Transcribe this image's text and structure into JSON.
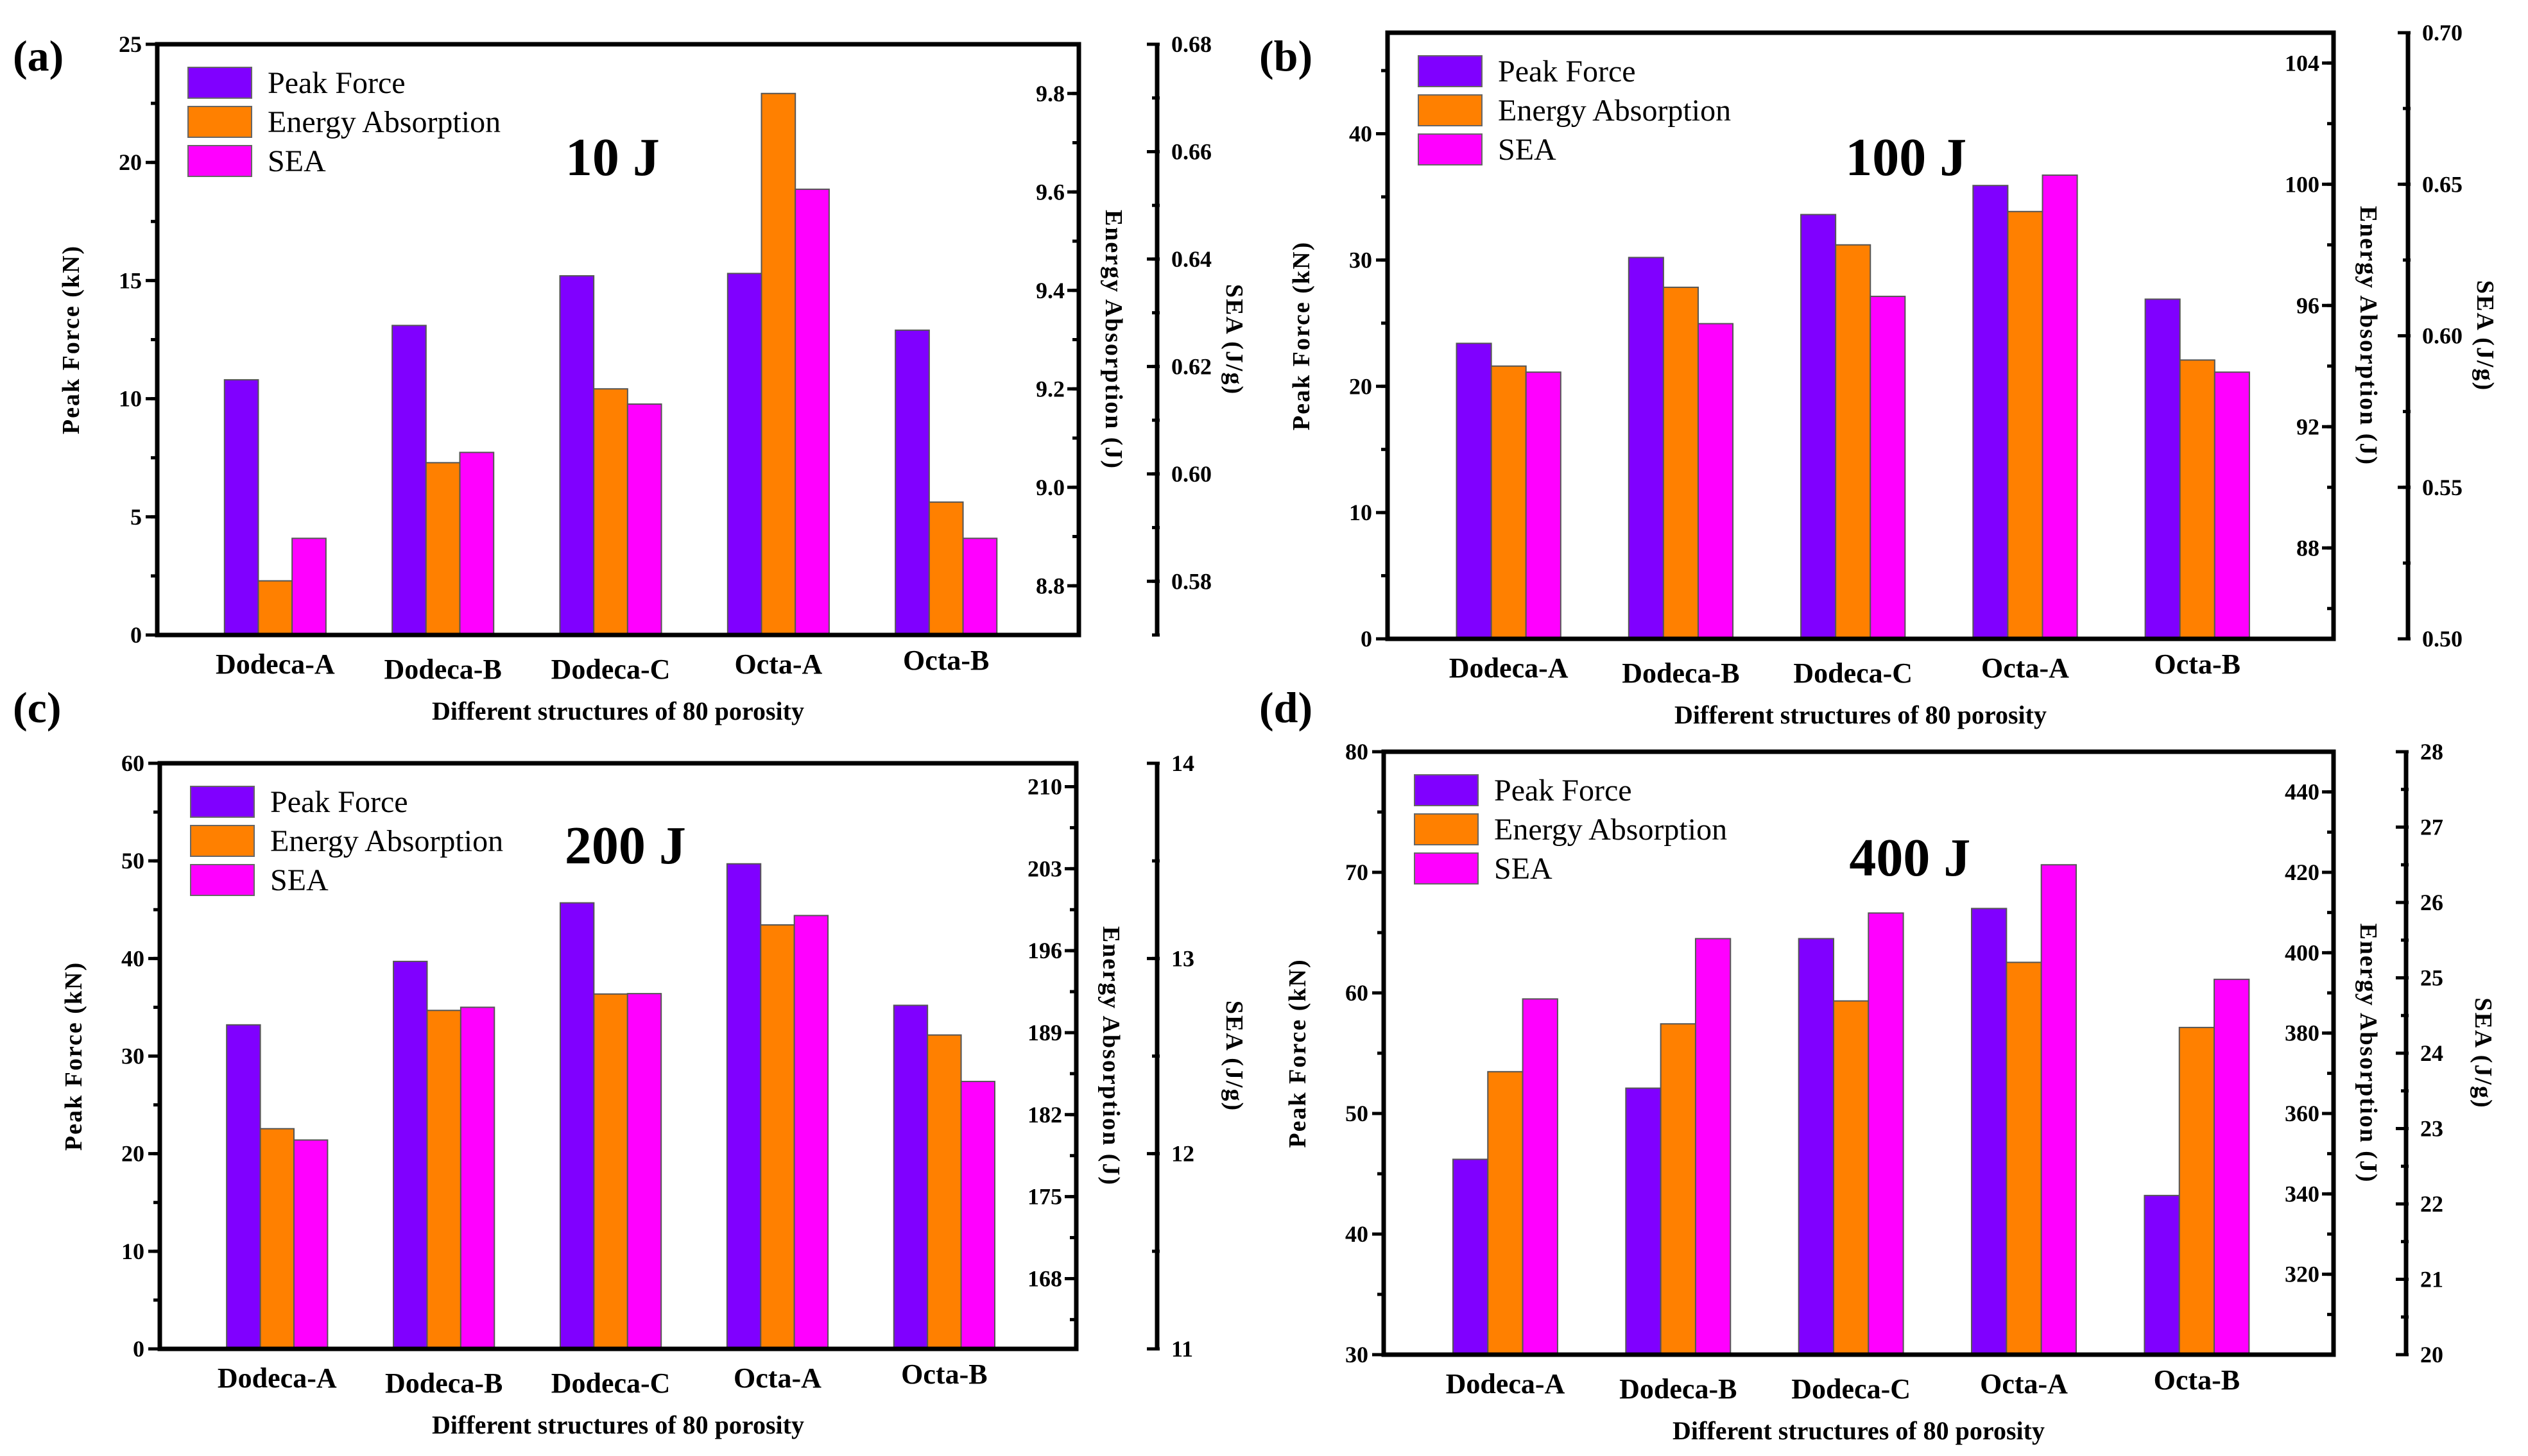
{
  "colors": {
    "peak_force": "#8000ff",
    "energy_absorption": "#ff8000",
    "sea": "#ff00ff"
  },
  "chart_data": [
    {
      "type": "bar",
      "panel_label": "(a)",
      "title": "10 J",
      "categories": [
        "Dodeca-A",
        "Dodeca-B",
        "Dodeca-C",
        "Octa-A",
        "Octa-B"
      ],
      "xlabel": "Different structures of 80 porosity",
      "legend": [
        "Peak Force",
        "Energy Absorption",
        "SEA"
      ],
      "legend_position": "top-left",
      "axes": {
        "left": {
          "label": "Peak Force (kN)",
          "min": 0,
          "max": 25,
          "ticks": [
            "0",
            "5",
            "10",
            "15",
            "20",
            "25"
          ]
        },
        "right1": {
          "label": "Energy Absorption (J)",
          "min": 8.7,
          "max": 9.9,
          "ticks": [
            "8.8",
            "9.0",
            "9.2",
            "9.4",
            "9.6",
            "9.8"
          ]
        },
        "right2": {
          "label": "SEA (J/g)",
          "min": 0.57,
          "max": 0.68,
          "ticks": [
            "0.58",
            "0.60",
            "0.62",
            "0.64",
            "0.66",
            "0.68"
          ]
        }
      },
      "series": [
        {
          "name": "Peak Force",
          "axis": "left",
          "values": [
            10.8,
            13.1,
            15.2,
            15.3,
            12.9
          ]
        },
        {
          "name": "Energy Absorption",
          "axis": "right1",
          "values": [
            8.81,
            9.05,
            9.2,
            9.8,
            8.97
          ]
        },
        {
          "name": "SEA",
          "axis": "right2",
          "values": [
            0.588,
            0.604,
            0.613,
            0.653,
            0.588
          ]
        }
      ]
    },
    {
      "type": "bar",
      "panel_label": "(b)",
      "title": "100 J",
      "categories": [
        "Dodeca-A",
        "Dodeca-B",
        "Dodeca-C",
        "Octa-A",
        "Octa-B"
      ],
      "xlabel": "Different structures of 80 porosity",
      "legend": [
        "Peak Force",
        "Energy Absorption",
        "SEA"
      ],
      "legend_position": "top-left",
      "axes": {
        "left": {
          "label": "Peak Force (kN)",
          "min": 0,
          "max": 48,
          "ticks": [
            "0",
            "10",
            "20",
            "30",
            "40"
          ]
        },
        "right1": {
          "label": "Energy Absorption (J)",
          "min": 85,
          "max": 105,
          "ticks": [
            "88",
            "92",
            "96",
            "100",
            "104"
          ]
        },
        "right2": {
          "label": "SEA (J/g)",
          "min": 0.5,
          "max": 0.7,
          "ticks": [
            "0.50",
            "0.55",
            "0.60",
            "0.65",
            "0.70"
          ]
        }
      },
      "series": [
        {
          "name": "Peak Force",
          "axis": "left",
          "values": [
            23.4,
            30.2,
            33.6,
            35.9,
            26.9
          ]
        },
        {
          "name": "Energy Absorption",
          "axis": "right1",
          "values": [
            94.0,
            96.6,
            98.0,
            99.1,
            94.2
          ]
        },
        {
          "name": "SEA",
          "axis": "right2",
          "values": [
            0.588,
            0.604,
            0.613,
            0.653,
            0.588
          ]
        }
      ]
    },
    {
      "type": "bar",
      "panel_label": "(c)",
      "title": "200 J",
      "categories": [
        "Dodeca-A",
        "Dodeca-B",
        "Dodeca-C",
        "Octa-A",
        "Octa-B"
      ],
      "xlabel": "Different structures of 80 porosity",
      "legend": [
        "Peak Force",
        "Energy Absorption",
        "SEA"
      ],
      "legend_position": "top-left",
      "axes": {
        "left": {
          "label": "Peak Force (kN)",
          "min": 0,
          "max": 60,
          "ticks": [
            "0",
            "10",
            "20",
            "30",
            "40",
            "50",
            "60"
          ]
        },
        "right1": {
          "label": "Energy Absorption (J)",
          "min": 162,
          "max": 212,
          "ticks": [
            "168",
            "175",
            "182",
            "189",
            "196",
            "203",
            "210"
          ]
        },
        "right2": {
          "label": "SEA (J/g)",
          "min": 11,
          "max": 14,
          "ticks": [
            "11",
            "12",
            "13",
            "14"
          ]
        }
      },
      "series": [
        {
          "name": "Peak Force",
          "axis": "left",
          "values": [
            33.2,
            39.7,
            45.7,
            49.7,
            35.2
          ]
        },
        {
          "name": "Energy Absorption",
          "axis": "right1",
          "values": [
            180.8,
            190.9,
            192.3,
            198.2,
            188.8
          ]
        },
        {
          "name": "SEA",
          "axis": "right2",
          "values": [
            12.07,
            12.75,
            12.82,
            13.22,
            12.37
          ]
        }
      ]
    },
    {
      "type": "bar",
      "panel_label": "(d)",
      "title": "400 J",
      "categories": [
        "Dodeca-A",
        "Dodeca-B",
        "Dodeca-C",
        "Octa-A",
        "Octa-B"
      ],
      "xlabel": "Different structures of 80 porosity",
      "legend": [
        "Peak Force",
        "Energy Absorption",
        "SEA"
      ],
      "legend_position": "top-left",
      "axes": {
        "left": {
          "label": "Peak Force (kN)",
          "min": 30,
          "max": 80,
          "ticks": [
            "30",
            "40",
            "50",
            "60",
            "70",
            "80"
          ]
        },
        "right1": {
          "label": "Energy Absorption (J)",
          "min": 300,
          "max": 450,
          "ticks": [
            "320",
            "340",
            "360",
            "380",
            "400",
            "420",
            "440"
          ]
        },
        "right2": {
          "label": "SEA (J/g)",
          "min": 20,
          "max": 28,
          "ticks": [
            "20",
            "21",
            "22",
            "23",
            "24",
            "25",
            "26",
            "27",
            "28"
          ]
        }
      },
      "series": [
        {
          "name": "Peak Force",
          "axis": "left",
          "values": [
            46.2,
            52.1,
            64.5,
            67.0,
            43.2
          ]
        },
        {
          "name": "Energy Absorption",
          "axis": "right1",
          "values": [
            370.4,
            382.3,
            388.0,
            397.6,
            381.4
          ]
        },
        {
          "name": "SEA",
          "axis": "right2",
          "values": [
            24.72,
            25.52,
            25.86,
            26.5,
            24.98
          ]
        }
      ]
    }
  ]
}
